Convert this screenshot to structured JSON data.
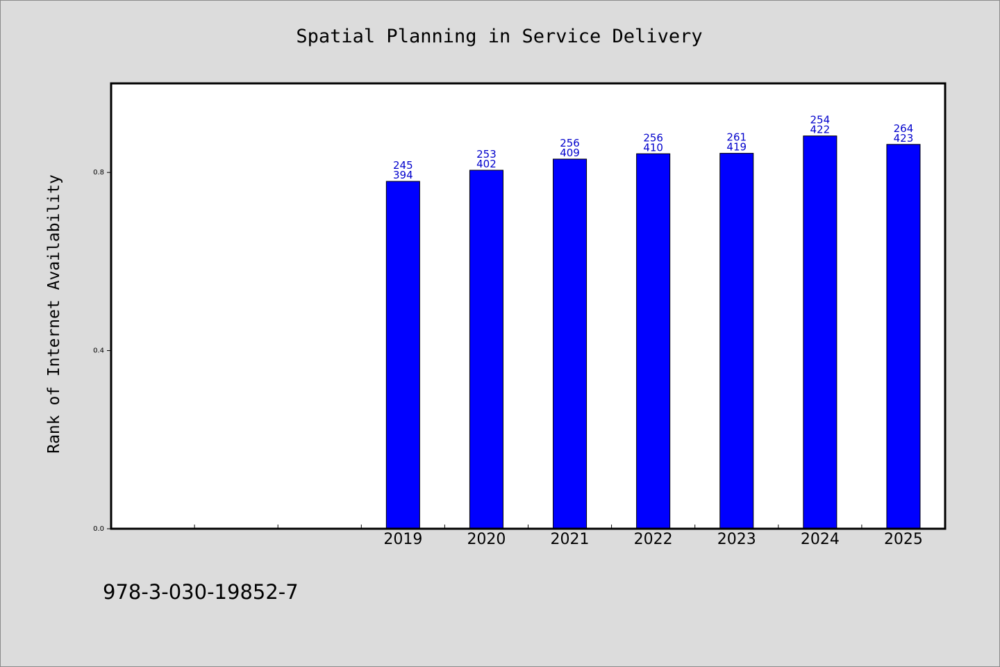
{
  "chart_data": {
    "type": "bar",
    "title": "Spatial Planning in Service Delivery",
    "xlabel": "",
    "ylabel": "Rank of Internet Availability",
    "categories": [
      "2019",
      "2020",
      "2021",
      "2022",
      "2023",
      "2024",
      "2025"
    ],
    "values": [
      0.78,
      0.805,
      0.83,
      0.842,
      0.843,
      0.882,
      0.863
    ],
    "data_labels": [
      [
        "245",
        "394"
      ],
      [
        "253",
        "402"
      ],
      [
        "256",
        "409"
      ],
      [
        "256",
        "410"
      ],
      [
        "261",
        "419"
      ],
      [
        "254",
        "422"
      ],
      [
        "264",
        "423"
      ]
    ],
    "empty_leading_slots": 3,
    "ylim": [
      0,
      1.0
    ],
    "yticks": [
      0.0,
      0.4,
      0.8
    ],
    "ytick_labels": [
      "0.0",
      "0.4",
      "0.8"
    ],
    "bar_color": "#0000ff",
    "label_color": "#0000cc",
    "grid": false,
    "legend": "none"
  },
  "footer": {
    "code": "978-3-030-19852-7"
  }
}
